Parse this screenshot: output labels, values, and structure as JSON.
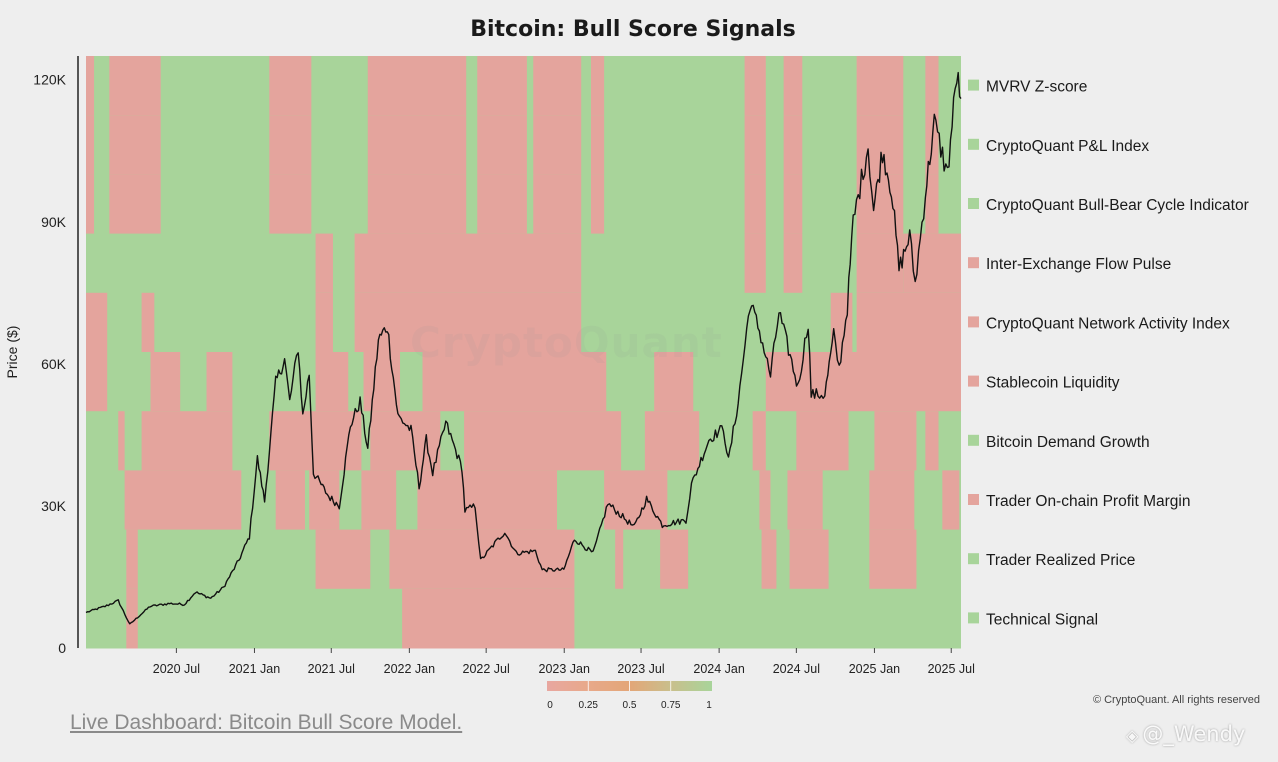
{
  "chart_data": {
    "type": "heatmap",
    "title": "Bitcoin: Bull Score Signals",
    "ylabel": "Price ($)",
    "ylim": [
      0,
      125000
    ],
    "y_ticks": [
      {
        "value": 0,
        "label": "0"
      },
      {
        "value": 30000,
        "label": "30K"
      },
      {
        "value": 60000,
        "label": "60K"
      },
      {
        "value": 90000,
        "label": "90K"
      },
      {
        "value": 120000,
        "label": "120K"
      }
    ],
    "x_range": [
      "2019-12-01",
      "2025-07-24"
    ],
    "x_ticks": [
      {
        "date": "2020-07-01",
        "label": "2020 Jul"
      },
      {
        "date": "2021-01-01",
        "label": "2021 Jan"
      },
      {
        "date": "2021-07-01",
        "label": "2021 Jul"
      },
      {
        "date": "2022-01-01",
        "label": "2022 Jan"
      },
      {
        "date": "2022-07-01",
        "label": "2022 Jul"
      },
      {
        "date": "2023-01-01",
        "label": "2023 Jan"
      },
      {
        "date": "2023-07-01",
        "label": "2023 Jul"
      },
      {
        "date": "2024-01-01",
        "label": "2024 Jan"
      },
      {
        "date": "2024-07-01",
        "label": "2024 Jul"
      },
      {
        "date": "2025-01-01",
        "label": "2025 Jan"
      },
      {
        "date": "2025-07-01",
        "label": "2025 Jul"
      }
    ],
    "colors": {
      "bull": "#a8d49a",
      "bear": "#e4a49d",
      "price_line": "#111111"
    },
    "colorscale": {
      "ticks": [
        "0",
        "0.25",
        "0.5",
        "0.75",
        "1"
      ],
      "colors": [
        "#e8a7a0",
        "#e8a98a",
        "#e3a678",
        "#c9bf8c",
        "#a8d49a"
      ]
    },
    "indicators": [
      {
        "name": "MVRV Z-score",
        "current": 1,
        "bear_periods": [
          [
            "2019-12-01",
            "2019-12-20"
          ],
          [
            "2020-01-25",
            "2020-05-25"
          ],
          [
            "2021-02-05",
            "2021-05-15"
          ],
          [
            "2021-09-25",
            "2022-05-15"
          ],
          [
            "2022-06-10",
            "2022-10-05"
          ],
          [
            "2022-10-20",
            "2023-02-10"
          ],
          [
            "2023-03-05",
            "2023-04-05"
          ],
          [
            "2024-03-01",
            "2024-04-20"
          ],
          [
            "2024-06-01",
            "2024-07-15"
          ],
          [
            "2024-11-20",
            "2025-03-10"
          ],
          [
            "2025-05-01",
            "2025-06-01"
          ]
        ]
      },
      {
        "name": "CryptoQuant P&L Index",
        "current": 1,
        "bear_periods": [
          [
            "2019-12-01",
            "2019-12-20"
          ],
          [
            "2020-01-25",
            "2020-05-25"
          ],
          [
            "2021-02-05",
            "2021-05-15"
          ],
          [
            "2021-09-25",
            "2022-05-15"
          ],
          [
            "2022-06-10",
            "2022-10-05"
          ],
          [
            "2022-10-20",
            "2023-02-10"
          ],
          [
            "2023-03-05",
            "2023-04-05"
          ],
          [
            "2024-03-01",
            "2024-04-20"
          ],
          [
            "2024-06-01",
            "2024-07-15"
          ],
          [
            "2024-11-20",
            "2025-03-10"
          ],
          [
            "2025-05-01",
            "2025-06-01"
          ]
        ]
      },
      {
        "name": "CryptoQuant Bull-Bear Cycle Indicator",
        "current": 1,
        "bear_periods": [
          [
            "2019-12-01",
            "2019-12-20"
          ],
          [
            "2020-01-25",
            "2020-05-25"
          ],
          [
            "2021-02-05",
            "2021-05-15"
          ],
          [
            "2021-09-25",
            "2022-05-15"
          ],
          [
            "2022-06-10",
            "2022-10-05"
          ],
          [
            "2022-10-20",
            "2023-02-10"
          ],
          [
            "2023-03-05",
            "2023-04-05"
          ],
          [
            "2024-03-01",
            "2024-04-20"
          ],
          [
            "2024-06-01",
            "2024-07-15"
          ],
          [
            "2024-11-20",
            "2025-03-10"
          ],
          [
            "2025-05-01",
            "2025-06-01"
          ]
        ]
      },
      {
        "name": "Inter-Exchange Flow Pulse",
        "current": 0,
        "bear_periods": [
          [
            "2021-05-25",
            "2021-07-05"
          ],
          [
            "2021-08-25",
            "2023-02-10"
          ],
          [
            "2024-03-01",
            "2024-04-20"
          ],
          [
            "2024-06-01",
            "2024-07-15"
          ],
          [
            "2024-11-20",
            "2025-03-10"
          ],
          [
            "2025-03-10",
            "2025-07-24"
          ]
        ]
      },
      {
        "name": "CryptoQuant Network Activity Index",
        "current": 0,
        "bear_periods": [
          [
            "2019-12-01",
            "2020-01-20"
          ],
          [
            "2020-04-10",
            "2020-05-10"
          ],
          [
            "2021-05-25",
            "2021-07-05"
          ],
          [
            "2021-08-25",
            "2023-02-10"
          ],
          [
            "2024-09-20",
            "2024-11-10"
          ],
          [
            "2024-11-20",
            "2025-07-24"
          ]
        ]
      },
      {
        "name": "Stablecoin Liquidity",
        "current": 0,
        "bear_periods": [
          [
            "2019-12-01",
            "2020-01-20"
          ],
          [
            "2020-05-01",
            "2020-07-10"
          ],
          [
            "2020-09-10",
            "2020-11-10"
          ],
          [
            "2021-05-25",
            "2021-08-10"
          ],
          [
            "2021-09-15",
            "2021-12-10"
          ],
          [
            "2022-02-01",
            "2023-04-10"
          ],
          [
            "2023-08-01",
            "2023-11-01"
          ],
          [
            "2024-04-20",
            "2025-07-24"
          ]
        ]
      },
      {
        "name": "Bitcoin Demand Growth",
        "current": 1,
        "bear_periods": [
          [
            "2020-02-15",
            "2020-03-01"
          ],
          [
            "2020-04-10",
            "2020-11-10"
          ],
          [
            "2021-02-05",
            "2021-09-10"
          ],
          [
            "2021-10-01",
            "2022-03-15"
          ],
          [
            "2022-05-10",
            "2023-05-15"
          ],
          [
            "2023-07-10",
            "2023-11-15"
          ],
          [
            "2024-03-20",
            "2024-04-20"
          ],
          [
            "2024-07-01",
            "2024-11-01"
          ],
          [
            "2025-01-01",
            "2025-04-10"
          ],
          [
            "2025-05-01",
            "2025-06-01"
          ]
        ]
      },
      {
        "name": "Trader On-chain Profit Margin",
        "current": 0,
        "bear_periods": [
          [
            "2020-03-01",
            "2020-12-01"
          ],
          [
            "2021-02-20",
            "2021-04-30"
          ],
          [
            "2021-05-10",
            "2021-07-20"
          ],
          [
            "2021-09-10",
            "2021-12-01"
          ],
          [
            "2022-01-20",
            "2022-12-15"
          ],
          [
            "2023-04-05",
            "2023-09-01"
          ],
          [
            "2024-04-05",
            "2024-05-01"
          ],
          [
            "2024-06-10",
            "2024-09-01"
          ],
          [
            "2024-12-20",
            "2025-04-05"
          ],
          [
            "2025-06-10",
            "2025-07-20"
          ]
        ]
      },
      {
        "name": "Trader Realized Price",
        "current": 1,
        "bear_periods": [
          [
            "2020-03-05",
            "2020-04-01"
          ],
          [
            "2021-05-25",
            "2021-10-01"
          ],
          [
            "2021-11-15",
            "2023-01-25"
          ],
          [
            "2023-05-01",
            "2023-05-20"
          ],
          [
            "2023-08-15",
            "2023-10-20"
          ],
          [
            "2024-04-10",
            "2024-05-15"
          ],
          [
            "2024-06-15",
            "2024-09-15"
          ],
          [
            "2024-12-20",
            "2025-04-10"
          ]
        ]
      },
      {
        "name": "Technical Signal",
        "current": 1,
        "bear_periods": [
          [
            "2020-03-05",
            "2020-04-01"
          ],
          [
            "2021-12-15",
            "2023-01-25"
          ]
        ]
      }
    ],
    "price_anchors": [
      {
        "date": "2019-12-01",
        "price": 7500
      },
      {
        "date": "2020-01-15",
        "price": 8800
      },
      {
        "date": "2020-02-15",
        "price": 10000
      },
      {
        "date": "2020-03-13",
        "price": 5000
      },
      {
        "date": "2020-04-30",
        "price": 8800
      },
      {
        "date": "2020-06-15",
        "price": 9400
      },
      {
        "date": "2020-07-20",
        "price": 9200
      },
      {
        "date": "2020-08-15",
        "price": 11800
      },
      {
        "date": "2020-09-20",
        "price": 10500
      },
      {
        "date": "2020-10-20",
        "price": 12800
      },
      {
        "date": "2020-11-25",
        "price": 18500
      },
      {
        "date": "2020-12-20",
        "price": 23500
      },
      {
        "date": "2021-01-08",
        "price": 40000
      },
      {
        "date": "2021-01-25",
        "price": 31000
      },
      {
        "date": "2021-02-20",
        "price": 56000
      },
      {
        "date": "2021-03-13",
        "price": 61000
      },
      {
        "date": "2021-03-25",
        "price": 52000
      },
      {
        "date": "2021-04-14",
        "price": 63500
      },
      {
        "date": "2021-04-25",
        "price": 49000
      },
      {
        "date": "2021-05-10",
        "price": 58000
      },
      {
        "date": "2021-05-20",
        "price": 37000
      },
      {
        "date": "2021-06-25",
        "price": 32000
      },
      {
        "date": "2021-07-20",
        "price": 30000
      },
      {
        "date": "2021-08-15",
        "price": 47000
      },
      {
        "date": "2021-09-07",
        "price": 52000
      },
      {
        "date": "2021-09-25",
        "price": 42000
      },
      {
        "date": "2021-10-20",
        "price": 65000
      },
      {
        "date": "2021-11-10",
        "price": 68000
      },
      {
        "date": "2021-12-05",
        "price": 49000
      },
      {
        "date": "2022-01-05",
        "price": 46000
      },
      {
        "date": "2022-01-24",
        "price": 34000
      },
      {
        "date": "2022-02-10",
        "price": 44000
      },
      {
        "date": "2022-02-25",
        "price": 37000
      },
      {
        "date": "2022-03-28",
        "price": 47500
      },
      {
        "date": "2022-05-05",
        "price": 38000
      },
      {
        "date": "2022-05-12",
        "price": 29000
      },
      {
        "date": "2022-06-05",
        "price": 30000
      },
      {
        "date": "2022-06-18",
        "price": 18500
      },
      {
        "date": "2022-07-25",
        "price": 22500
      },
      {
        "date": "2022-08-14",
        "price": 24500
      },
      {
        "date": "2022-09-10",
        "price": 20000
      },
      {
        "date": "2022-10-25",
        "price": 20500
      },
      {
        "date": "2022-11-10",
        "price": 16500
      },
      {
        "date": "2022-12-31",
        "price": 16500
      },
      {
        "date": "2023-01-25",
        "price": 23000
      },
      {
        "date": "2023-03-10",
        "price": 20000
      },
      {
        "date": "2023-04-14",
        "price": 30500
      },
      {
        "date": "2023-06-15",
        "price": 25500
      },
      {
        "date": "2023-07-14",
        "price": 31500
      },
      {
        "date": "2023-08-20",
        "price": 26000
      },
      {
        "date": "2023-10-15",
        "price": 27000
      },
      {
        "date": "2023-10-28",
        "price": 34500
      },
      {
        "date": "2023-12-08",
        "price": 44000
      },
      {
        "date": "2024-01-11",
        "price": 46500
      },
      {
        "date": "2024-01-23",
        "price": 39500
      },
      {
        "date": "2024-02-15",
        "price": 52000
      },
      {
        "date": "2024-03-14",
        "price": 73000
      },
      {
        "date": "2024-04-05",
        "price": 67000
      },
      {
        "date": "2024-05-01",
        "price": 57500
      },
      {
        "date": "2024-05-21",
        "price": 71000
      },
      {
        "date": "2024-07-05",
        "price": 55000
      },
      {
        "date": "2024-07-29",
        "price": 69000
      },
      {
        "date": "2024-08-05",
        "price": 53500
      },
      {
        "date": "2024-09-06",
        "price": 53500
      },
      {
        "date": "2024-09-27",
        "price": 66000
      },
      {
        "date": "2024-10-10",
        "price": 59000
      },
      {
        "date": "2024-10-29",
        "price": 72000
      },
      {
        "date": "2024-11-12",
        "price": 90000
      },
      {
        "date": "2024-12-17",
        "price": 106000
      },
      {
        "date": "2024-12-30",
        "price": 92500
      },
      {
        "date": "2025-01-20",
        "price": 105000
      },
      {
        "date": "2025-02-10",
        "price": 97000
      },
      {
        "date": "2025-02-28",
        "price": 80000
      },
      {
        "date": "2025-03-25",
        "price": 87000
      },
      {
        "date": "2025-04-07",
        "price": 77000
      },
      {
        "date": "2025-05-01",
        "price": 96000
      },
      {
        "date": "2025-05-22",
        "price": 111000
      },
      {
        "date": "2025-06-22",
        "price": 100000
      },
      {
        "date": "2025-07-14",
        "price": 121000
      },
      {
        "date": "2025-07-24",
        "price": 116000
      }
    ],
    "copyright": "© CryptoQuant. All rights reserved"
  },
  "watermark": "CryptoQuant",
  "link_text": "Live Dashboard: Bitcoin Bull Score Model.",
  "author": "@_Wendy"
}
